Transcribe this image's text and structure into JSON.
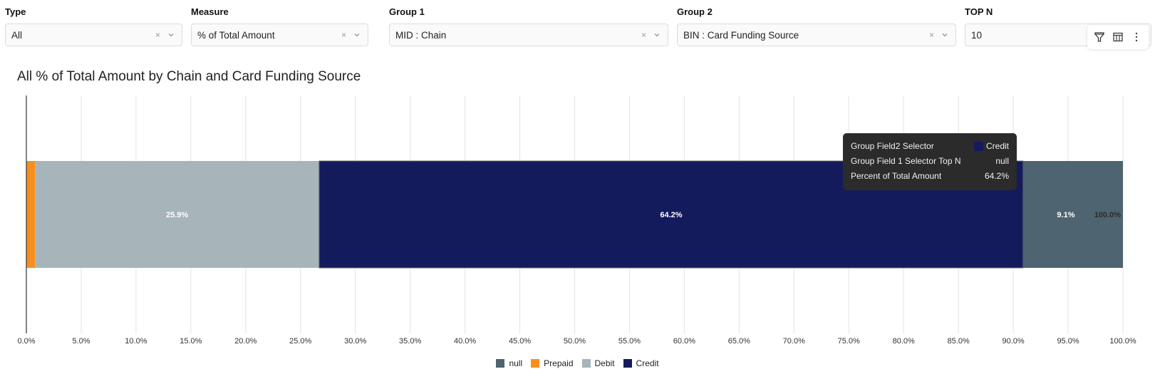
{
  "filters": [
    {
      "label": "Type",
      "value": "All",
      "clearable": true
    },
    {
      "label": "Measure",
      "value": "% of Total Amount",
      "clearable": true
    },
    {
      "label": "Group 1",
      "value": "MID : Chain",
      "clearable": true
    },
    {
      "label": "Group 2",
      "value": "BIN : Card Funding Source",
      "clearable": true
    },
    {
      "label": "TOP N",
      "value": "10",
      "clearable": false
    }
  ],
  "toolbar": {
    "icons": [
      "filter-icon",
      "table-icon",
      "more-vertical-icon"
    ]
  },
  "clear_glyph": "×",
  "tooltip": {
    "rows": [
      {
        "label": "Group Field2 Selector",
        "value": "Credit",
        "swatch": "#141b5c"
      },
      {
        "label": "Group Field 1 Selector Top N",
        "value": "null"
      },
      {
        "label": "Percent of Total Amount",
        "value": "64.2%"
      }
    ]
  },
  "chart_data": {
    "type": "bar",
    "orientation": "horizontal",
    "stacked": true,
    "title": "All % of Total Amount by Chain and Card Funding Source",
    "xlabel": "",
    "ylabel": "",
    "xlim": [
      0,
      100
    ],
    "x_ticks": [
      "0.0%",
      "5.0%",
      "10.0%",
      "15.0%",
      "20.0%",
      "25.0%",
      "30.0%",
      "35.0%",
      "40.0%",
      "45.0%",
      "50.0%",
      "55.0%",
      "60.0%",
      "65.0%",
      "70.0%",
      "75.0%",
      "80.0%",
      "85.0%",
      "90.0%",
      "95.0%",
      "100.0%"
    ],
    "grid": true,
    "categories": [
      "null"
    ],
    "series": [
      {
        "name": "Prepaid",
        "color": "#f78f1e",
        "values": [
          0.8
        ],
        "label": ""
      },
      {
        "name": "Debit",
        "color": "#a7b4ba",
        "values": [
          25.9
        ],
        "label": "25.9%"
      },
      {
        "name": "Credit",
        "color": "#141b5c",
        "values": [
          64.2
        ],
        "label": "64.2%"
      },
      {
        "name": "null",
        "color": "#4e6470",
        "values": [
          9.1
        ],
        "label": "9.1%"
      }
    ],
    "total_label": "100.0%",
    "legend": {
      "position": "bottom",
      "items": [
        {
          "name": "null",
          "color": "#4e6470"
        },
        {
          "name": "Prepaid",
          "color": "#f78f1e"
        },
        {
          "name": "Debit",
          "color": "#a7b4ba"
        },
        {
          "name": "Credit",
          "color": "#141b5c"
        }
      ]
    }
  }
}
